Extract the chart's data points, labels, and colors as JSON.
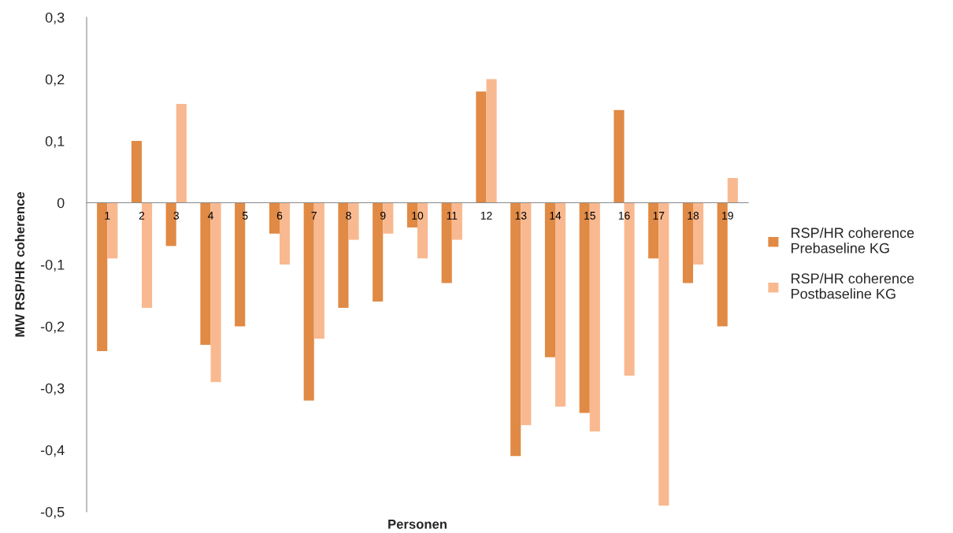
{
  "chart_data": {
    "type": "bar",
    "xlabel": "Personen",
    "ylabel": "MW RSP/HR coherence",
    "categories": [
      "1",
      "2",
      "3",
      "4",
      "5",
      "6",
      "7",
      "8",
      "9",
      "10",
      "11",
      "12",
      "13",
      "14",
      "15",
      "16",
      "17",
      "18",
      "19"
    ],
    "series": [
      {
        "name": "RSP/HR coherence\nPrebaseline KG",
        "color": "#e08a45",
        "values": [
          -0.24,
          0.1,
          -0.07,
          -0.23,
          -0.2,
          -0.05,
          -0.32,
          -0.17,
          -0.16,
          -0.04,
          -0.13,
          0.18,
          -0.41,
          -0.25,
          -0.34,
          0.15,
          -0.09,
          -0.13,
          -0.2
        ]
      },
      {
        "name": "RSP/HR coherence\nPostbaseline KG",
        "color": "#f9b990",
        "values": [
          -0.09,
          -0.17,
          0.16,
          -0.29,
          0,
          -0.1,
          -0.22,
          -0.06,
          -0.05,
          -0.09,
          -0.06,
          0.2,
          -0.36,
          -0.33,
          -0.37,
          -0.28,
          -0.49,
          -0.1,
          0.04
        ]
      }
    ],
    "ylim": [
      -0.5,
      0.3
    ],
    "yticks": [
      {
        "value": -0.5,
        "label": "-0,5"
      },
      {
        "value": -0.4,
        "label": "-0,4"
      },
      {
        "value": -0.3,
        "label": "-0,3"
      },
      {
        "value": -0.2,
        "label": "-0,2"
      },
      {
        "value": -0.1,
        "label": "-0,1"
      },
      {
        "value": 0,
        "label": "0"
      },
      {
        "value": 0.1,
        "label": "0,1"
      },
      {
        "value": 0.2,
        "label": "0,2"
      },
      {
        "value": 0.3,
        "label": "0,3"
      }
    ],
    "grid": false,
    "legend": "right"
  }
}
